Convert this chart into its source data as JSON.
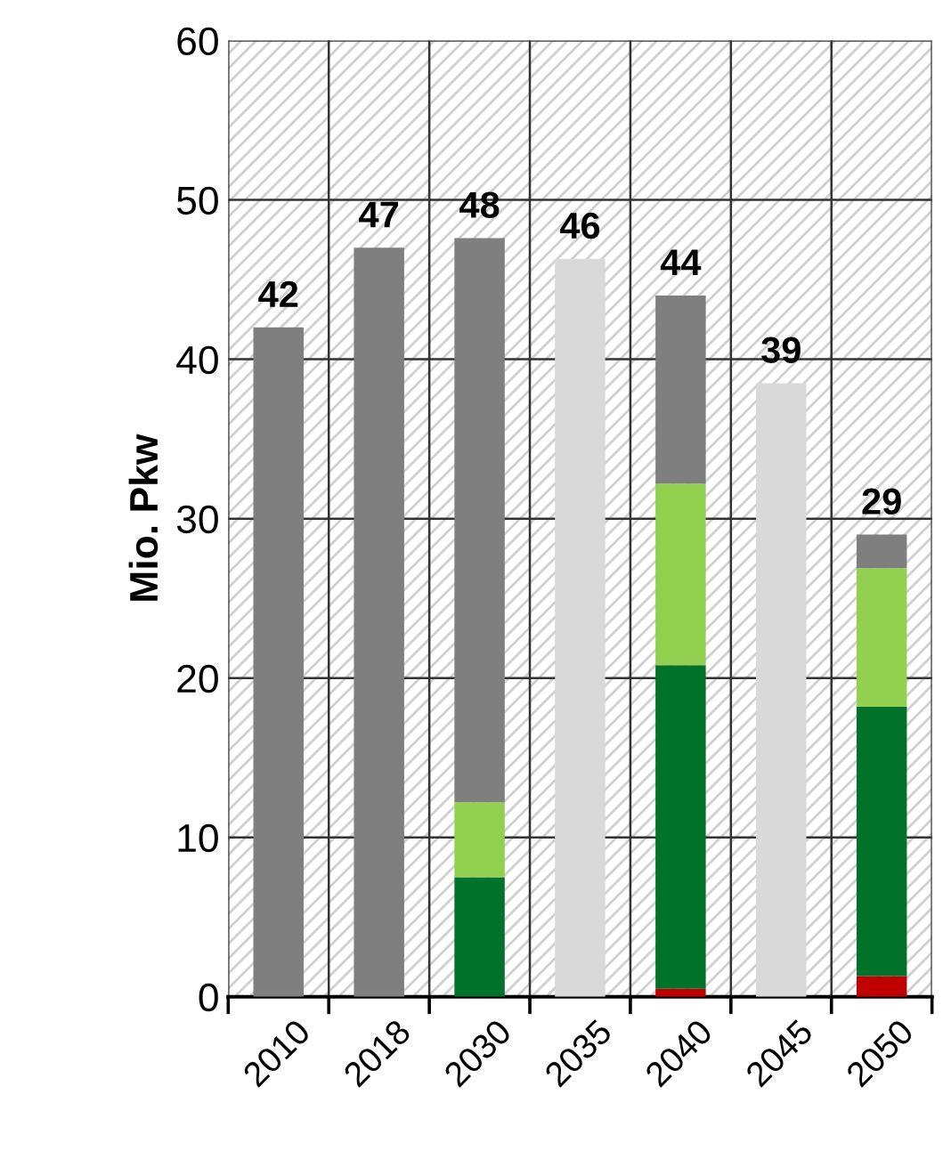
{
  "chart_data": {
    "type": "bar",
    "stacked": true,
    "ylabel": "Mio. Pkw",
    "categories": [
      "2010",
      "2018",
      "2030",
      "2035",
      "2040",
      "2045",
      "2050"
    ],
    "series": [
      {
        "color": "#c00000",
        "values": [
          0,
          0,
          0,
          0,
          0.5,
          0,
          1.3
        ]
      },
      {
        "color": "#007229",
        "values": [
          0,
          0,
          7.5,
          0,
          20.3,
          0,
          16.9
        ]
      },
      {
        "color": "#92d050",
        "values": [
          0,
          0,
          4.7,
          0,
          11.4,
          0,
          8.7
        ]
      },
      {
        "color": "#7f7f7f",
        "values": [
          42,
          47,
          35.4,
          0,
          11.8,
          0,
          2.1
        ]
      },
      {
        "color": "#d9d9d9",
        "values": [
          0,
          0,
          0,
          46.3,
          0,
          38.5,
          0
        ]
      }
    ],
    "totals": [
      "42",
      "47",
      "48",
      "46",
      "44",
      "39",
      "29"
    ],
    "ylim": [
      0,
      60
    ],
    "yticks": [
      0,
      10,
      20,
      30,
      40,
      50,
      60
    ],
    "grid": true,
    "legend": false
  }
}
